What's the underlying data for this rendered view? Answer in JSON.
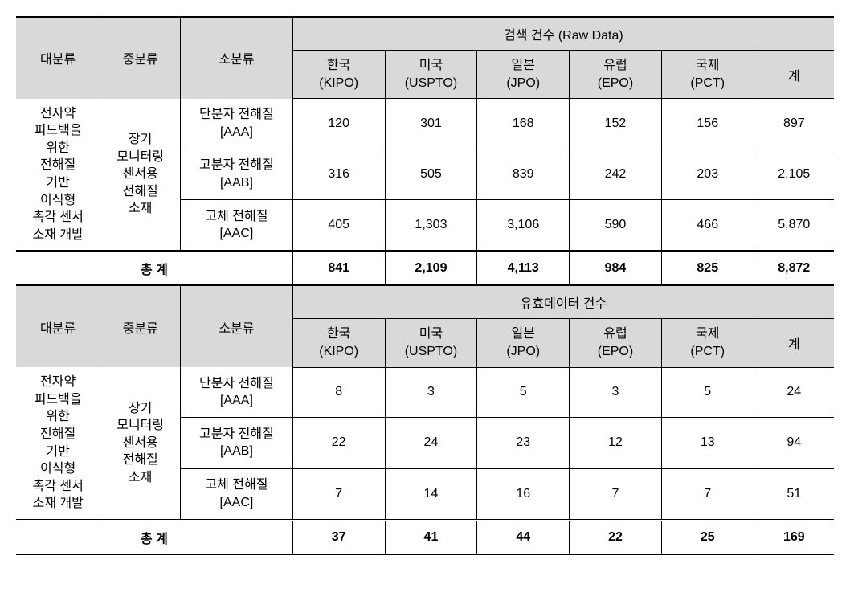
{
  "headers": {
    "col1": "대분류",
    "col2": "중분류",
    "col3": "소분류",
    "raw_data_title": "검색 건수 (Raw Data)",
    "valid_data_title": "유효데이터 건수",
    "korea": "한국\n(KIPO)",
    "us": "미국\n(USPTO)",
    "japan": "일본\n(JPO)",
    "europe": "유럽\n(EPO)",
    "intl": "국제\n(PCT)",
    "sum": "계",
    "total": "총 계"
  },
  "large_category": "전자약\n피드백을\n위한\n전해질\n기반\n이식형\n촉각 센서\n소재 개발",
  "mid_category": "장기\n모니터링\n센서용\n전해질\n소재",
  "small_categories": {
    "aaa": "단분자 전해질\n[AAA]",
    "aab": "고분자 전해질\n[AAB]",
    "aac": "고체 전해질\n[AAC]"
  },
  "raw_data": {
    "aaa": {
      "kr": "120",
      "us": "301",
      "jp": "168",
      "eu": "152",
      "intl": "156",
      "sum": "897"
    },
    "aab": {
      "kr": "316",
      "us": "505",
      "jp": "839",
      "eu": "242",
      "intl": "203",
      "sum": "2,105"
    },
    "aac": {
      "kr": "405",
      "us": "1,303",
      "jp": "3,106",
      "eu": "590",
      "intl": "466",
      "sum": "5,870"
    },
    "total": {
      "kr": "841",
      "us": "2,109",
      "jp": "4,113",
      "eu": "984",
      "intl": "825",
      "sum": "8,872"
    }
  },
  "valid_data": {
    "aaa": {
      "kr": "8",
      "us": "3",
      "jp": "5",
      "eu": "3",
      "intl": "5",
      "sum": "24"
    },
    "aab": {
      "kr": "22",
      "us": "24",
      "jp": "23",
      "eu": "12",
      "intl": "13",
      "sum": "94"
    },
    "aac": {
      "kr": "7",
      "us": "14",
      "jp": "16",
      "eu": "7",
      "intl": "7",
      "sum": "51"
    },
    "total": {
      "kr": "37",
      "us": "41",
      "jp": "44",
      "eu": "22",
      "intl": "25",
      "sum": "169"
    }
  }
}
